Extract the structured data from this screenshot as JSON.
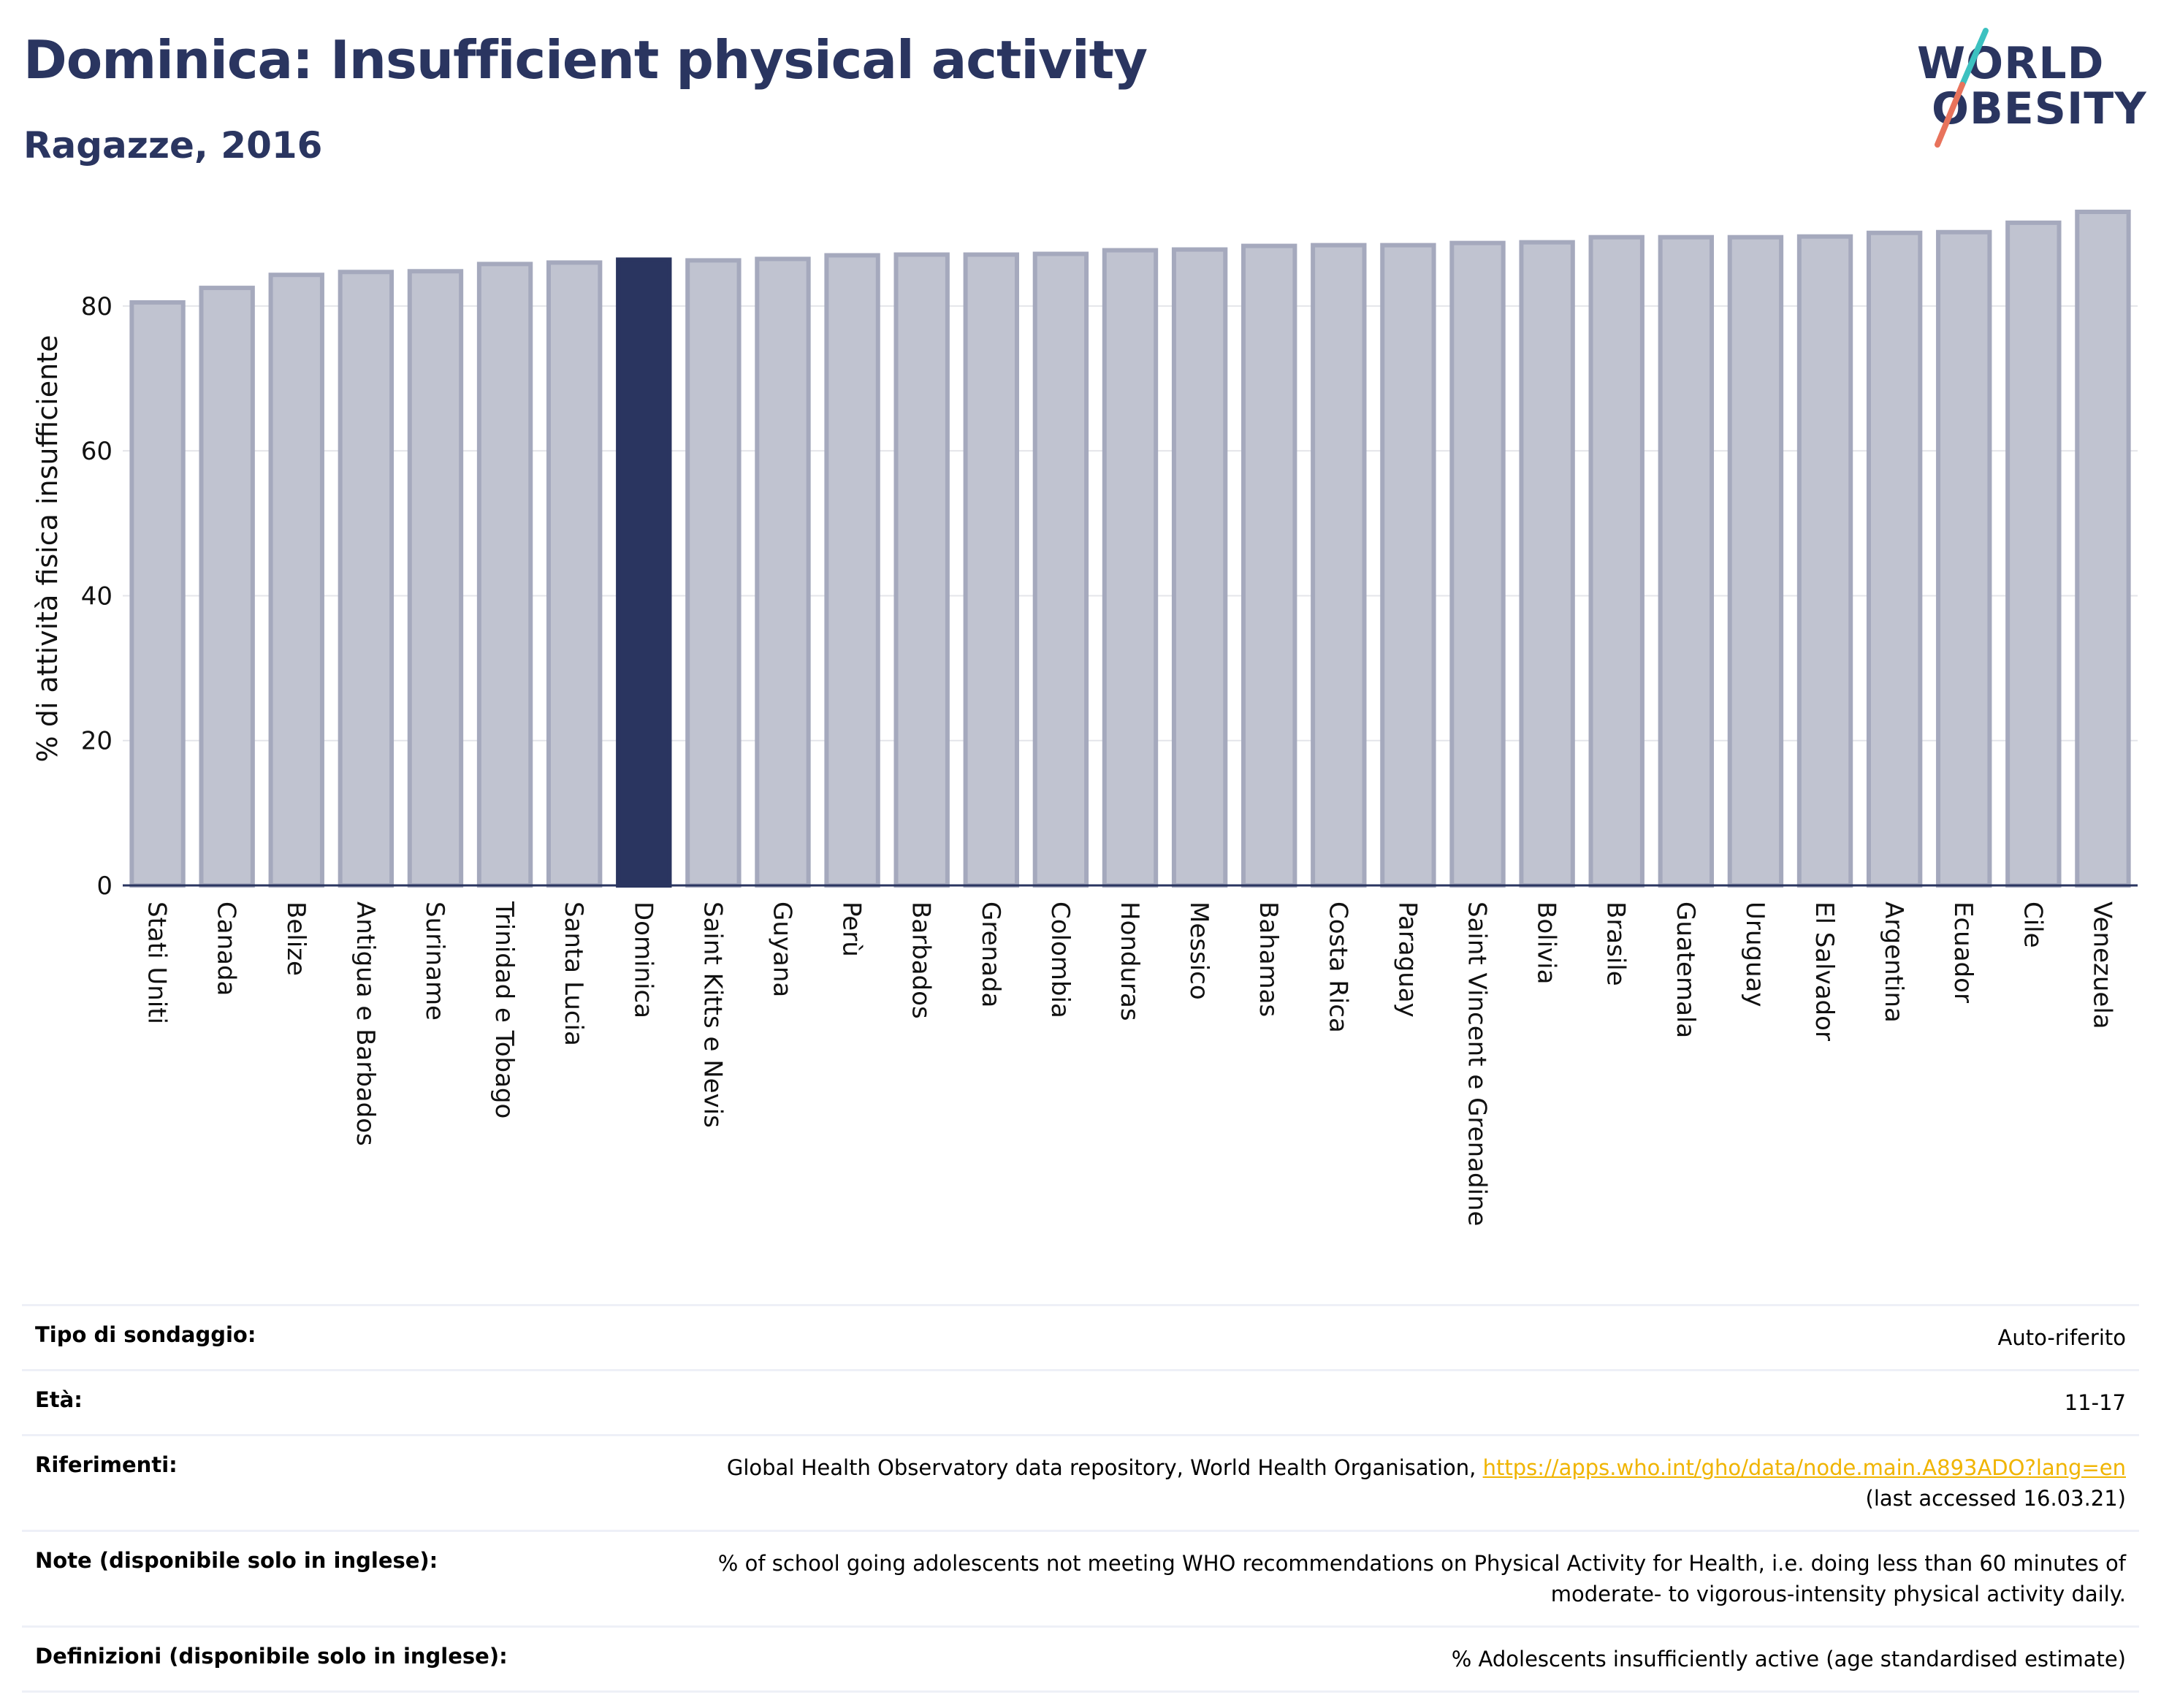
{
  "header": {
    "title": "Dominica: Insufficient physical activity",
    "subtitle": "Ragazze, 2016"
  },
  "logo": {
    "line1": "WORLD",
    "line2": "OBESITY",
    "accent_colors": [
      "#3cc1c0",
      "#e8735c"
    ]
  },
  "chart_data": {
    "type": "bar",
    "ylabel": "% di attività fisica insufficiente",
    "ylim": [
      0,
      93
    ],
    "yticks": [
      0,
      20,
      40,
      60,
      80
    ],
    "grid": true,
    "highlight": "Dominica",
    "colors": {
      "bar": "#c0c3d0",
      "bar_edge": "#a5a9bd",
      "highlight": "#2a3560"
    },
    "categories": [
      "Stati Uniti",
      "Canada",
      "Belize",
      "Antigua e Barbados",
      "Suriname",
      "Trinidad e Tobago",
      "Santa Lucia",
      "Dominica",
      "Saint Kitts e Nevis",
      "Guyana",
      "Perù",
      "Barbados",
      "Grenada",
      "Colombia",
      "Honduras",
      "Messico",
      "Bahamas",
      "Costa Rica",
      "Paraguay",
      "Saint Vincent e Grenadine",
      "Bolivia",
      "Brasile",
      "Guatemala",
      "Uruguay",
      "El Salvador",
      "Argentina",
      "Ecuador",
      "Cile",
      "Venezuela"
    ],
    "values": [
      80.5,
      82.5,
      84.3,
      84.7,
      84.8,
      85.8,
      86.0,
      86.4,
      86.3,
      86.5,
      87.0,
      87.1,
      87.1,
      87.2,
      87.7,
      87.8,
      88.3,
      88.4,
      88.4,
      88.7,
      88.8,
      89.5,
      89.5,
      89.5,
      89.6,
      90.1,
      90.2,
      91.5,
      93.0
    ]
  },
  "info": [
    {
      "label": "Tipo di sondaggio:",
      "value": "Auto-riferito"
    },
    {
      "label": "Età:",
      "value": "11-17"
    },
    {
      "label": "Riferimenti:",
      "value": "Global Health Observatory data repository, World Health Organisation,",
      "link": "https://apps.who.int/gho/data/node.main.A893ADO?lang=en",
      "extra": "(last accessed 16.03.21)"
    },
    {
      "label": "Note (disponibile solo in inglese):",
      "value": "% of school going adolescents not meeting WHO recommendations on Physical Activity for Health, i.e. doing less than 60 minutes of",
      "extra": "moderate- to vigorous-intensity physical activity daily."
    },
    {
      "label": "Definizioni (disponibile solo in inglese):",
      "value": "% Adolescents insufficiently active (age standardised estimate)"
    }
  ]
}
